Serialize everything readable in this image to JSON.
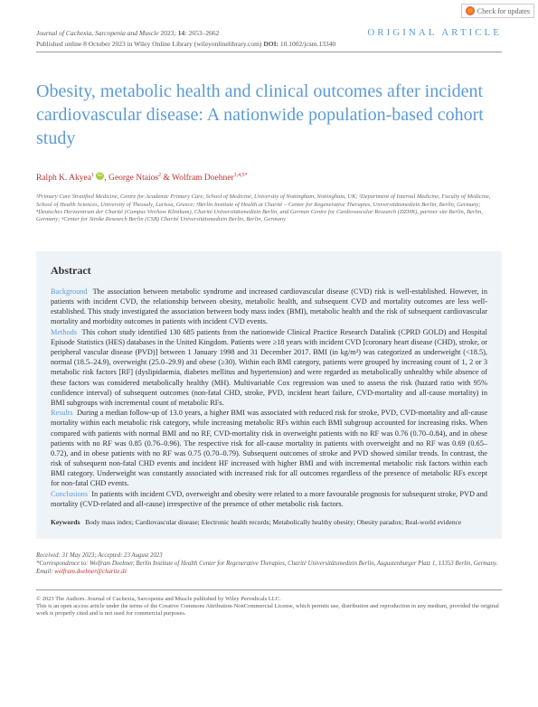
{
  "checkUpdates": "Check for updates",
  "journal": "Journal of Cachexia, Sarcopenia and Muscle",
  "year": "2023",
  "volIssue": "14",
  "pages": "2653–2662",
  "pubLine": "Published online 8 October 2023 in Wiley Online Library (wileyonlinelibrary.com)",
  "doiLabel": "DOI:",
  "doi": "10.1002/jcsm.13340",
  "articleType": "ORIGINAL ARTICLE",
  "title": "Obesity, metabolic health and clinical outcomes after incident cardiovascular disease: A nationwide population-based cohort study",
  "authors": {
    "a1": "Ralph K. Akyea",
    "a1sup": "1",
    "a2": "George Ntaios",
    "a2sup": "2",
    "a3": "Wolfram Doehner",
    "a3sup": "3,4,5*"
  },
  "affiliations": "¹Primary Care Stratified Medicine, Centre for Academic Primary Care, School of Medicine, University of Nottingham, Nottingham, UK; ²Department of Internal Medicine, Faculty of Medicine, School of Health Sciences, University of Thessaly, Larissa, Greece; ³Berlin Institute of Health at Charité – Center for Regenerative Therapies, Universitätsmedizin Berlin, Berlin, Germany; ⁴Deutsches Herzzentrum der Charité (Campus Virchow Klinikum), Charité Universitätsmedizin Berlin, and German Centre for Cardiovascular Research (DZHK), partner site Berlin, Berlin, Germany; ⁵Center for Stroke Research Berlin (CSB) Charité Universitätsmedizin Berlin, Berlin, Germany",
  "abstractHeading": "Abstract",
  "labels": {
    "background": "Background",
    "methods": "Methods",
    "results": "Results",
    "conclusions": "Conclusions"
  },
  "abstract": {
    "background": "The association between metabolic syndrome and increased cardiovascular disease (CVD) risk is well-established. However, in patients with incident CVD, the relationship between obesity, metabolic health, and subsequent CVD and mortality outcomes are less well-established. This study investigated the association between body mass index (BMI), metabolic health and the risk of subsequent cardiovascular mortality and morbidity outcomes in patients with incident CVD events.",
    "methods": "This cohort study identified 130 685 patients from the nationwide Clinical Practice Research Datalink (CPRD GOLD) and Hospital Episode Statistics (HES) databases in the United Kingdom. Patients were ≥18 years with incident CVD [coronary heart disease (CHD), stroke, or peripheral vascular disease (PVD)] between 1 January 1998 and 31 December 2017. BMI (in kg/m²) was categorized as underweight (<18.5), normal (18.5–24.9), overweight (25.0–29.9) and obese (≥30). Within each BMI category, patients were grouped by increasing count of 1, 2 or 3 metabolic risk factors [RF] (dyslipidaemia, diabetes mellitus and hypertension) and were regarded as metabolically unhealthy while absence of these factors was considered metabolically healthy (MH). Multivariable Cox regression was used to assess the risk (hazard ratio with 95% confidence interval) of subsequent outcomes (non-fatal CHD, stroke, PVD, incident heart failure, CVD-mortality and all-cause mortality) in BMI subgroups with incremental count of metabolic RFs.",
    "results": "During a median follow-up of 13.0 years, a higher BMI was associated with reduced risk for stroke, PVD, CVD-mortality and all-cause mortality within each metabolic risk category, while increasing metabolic RFs within each BMI subgroup accounted for increasing risks. When compared with patients with normal BMI and no RF, CVD-mortality risk in overweight patients with no RF was 0.76 (0.70–0.84), and in obese patients with no RF was 0.85 (0.76–0.96). The respective risk for all-cause mortality in patients with overweight and no RF was 0.69 (0.65–0.72), and in obese patients with no RF was 0.75 (0.70–0.79). Subsequent outcomes of stroke and PVD showed similar trends. In contrast, the risk of subsequent non-fatal CHD events and incident HF increased with higher BMI and with incremental metabolic risk factors within each BMI category. Underweight was constantly associated with increased risk for all outcomes regardless of the presence of metabolic RFs except for non-fatal CHD events.",
    "conclusions": "In patients with incident CVD, overweight and obesity were related to a more favourable prognosis for subsequent stroke, PVD and mortality (CVD-related and all-cause) irrespective of the presence of other metabolic risk factors."
  },
  "keywordsLabel": "Keywords",
  "keywords": "Body mass index; Cardiovascular disease; Electronic health records; Metabolically healthy obesity; Obesity paradox; Real-world evidence",
  "received": "Received: 31 May 2023; Accepted: 23 August 2023",
  "correspondence": "*Correspondence to: Wolfram Doehner, Berlin Institute of Health Center for Regenerative Therapies, Charité Universitätsmedizin Berlin, Augustenburger Platz 1, 13353 Berlin, Germany. Email: ",
  "email": "wolfram.doehner@charite.de",
  "copyright1": "© 2023 The Authors. Journal of Cachexia, Sarcopenia and Muscle published by Wiley Periodicals LLC.",
  "copyright2": "This is an open access article under the terms of the Creative Commons Attribution-NonCommercial License, which permits use, distribution and reproduction in any medium, provided the original work is properly cited and is not used for commercial purposes."
}
